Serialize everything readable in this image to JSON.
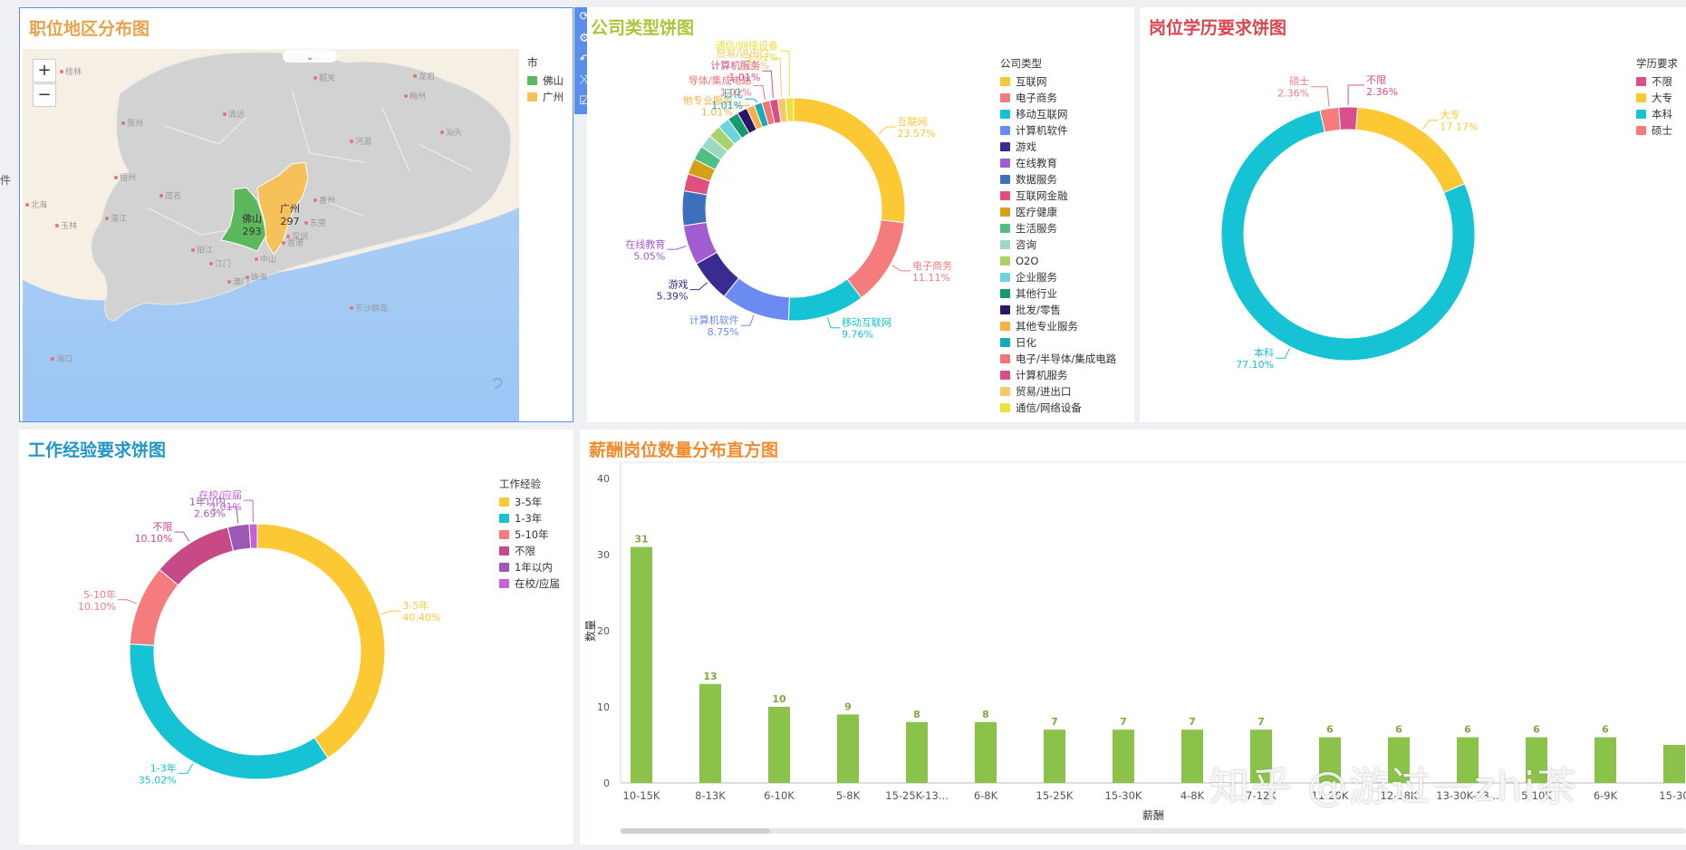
{
  "left_edge_text": "件",
  "map": {
    "title": "职位地区分布图",
    "zoom_in": "+",
    "zoom_out": "−",
    "legend_title": "市",
    "regions": [
      {
        "name": "佛山",
        "value": "293",
        "color": "#5cb85c"
      },
      {
        "name": "广州",
        "value": "297",
        "color": "#f7c15a"
      }
    ],
    "place_labels": [
      "桂林",
      "贺州",
      "梧州",
      "玉林",
      "北海",
      "香港",
      "东沙群岛",
      "海口",
      "茂名",
      "湛江",
      "阳江",
      "江门",
      "清远",
      "韶关",
      "河源",
      "梅州",
      "汕头",
      "惠州",
      "深圳",
      "龙岩",
      "东莞",
      "中山",
      "珠海",
      "澳门"
    ],
    "toolbar_icons": [
      "lasso-icon",
      "settings-icon",
      "undo-icon",
      "shuffle-icon",
      "checkbox-icon"
    ]
  },
  "company": {
    "title": "公司类型饼图",
    "legend_title": "公司类型",
    "chart_data": {
      "type": "pie",
      "title": "公司类型饼图",
      "legend_title": "公司类型",
      "slices": [
        {
          "name": "互联网",
          "percent": 23.57,
          "label": "23.57%",
          "color": "#fcc934"
        },
        {
          "name": "电子商务",
          "percent": 11.11,
          "label": "11.11%",
          "color": "#f47c7c"
        },
        {
          "name": "移动互联网",
          "percent": 9.76,
          "label": "9.76%",
          "color": "#16c3d4"
        },
        {
          "name": "计算机软件",
          "percent": 8.75,
          "label": "8.75%",
          "color": "#6b8bf0"
        },
        {
          "name": "游戏",
          "percent": 5.39,
          "label": "5.39%",
          "color": "#3b2a8f"
        },
        {
          "name": "在线教育",
          "percent": 5.05,
          "label": "5.05%",
          "color": "#a15cd1"
        },
        {
          "name": "数据服务",
          "percent": 4.4,
          "label": "",
          "color": "#3d6fba"
        },
        {
          "name": "互联网金融",
          "percent": 2.2,
          "label": "",
          "color": "#e0507c"
        },
        {
          "name": "医疗健康",
          "percent": 2.0,
          "label": "",
          "color": "#d4a017"
        },
        {
          "name": "生活服务",
          "percent": 1.8,
          "label": "",
          "color": "#4fbf86"
        },
        {
          "name": "咨询",
          "percent": 1.7,
          "label": "",
          "color": "#9ed8c4"
        },
        {
          "name": "O2O",
          "percent": 1.6,
          "label": "",
          "color": "#a7d36a"
        },
        {
          "name": "企业服务",
          "percent": 1.5,
          "label": "",
          "color": "#6fd3df"
        },
        {
          "name": "其他行业",
          "percent": 1.4,
          "label": "",
          "color": "#159a6e"
        },
        {
          "name": "批发/零售",
          "percent": 1.3,
          "label": "",
          "color": "#2c1668"
        },
        {
          "name": "其他专业服务",
          "percent": 1.01,
          "label": "1.01%",
          "color": "#f7b043"
        },
        {
          "name": "日化",
          "percent": 1.01,
          "label": "1.01%",
          "color": "#17aab8"
        },
        {
          "name": "电子/半导体/集成电路",
          "percent": 1.01,
          "label": "1.01%",
          "color": "#f27474"
        },
        {
          "name": "计算机服务",
          "percent": 1.01,
          "label": "1.01%",
          "color": "#d84d8a"
        },
        {
          "name": "贸易/进出口",
          "percent": 1.01,
          "label": "1.01%",
          "color": "#f5c96b"
        },
        {
          "name": "通信/网络设备",
          "percent": 1.01,
          "label": "1.01%",
          "color": "#f2e03a"
        }
      ]
    },
    "outer_labels": [
      {
        "name": "互联网",
        "pct": "23.57%"
      },
      {
        "name": "电子商务",
        "pct": "11.11%"
      },
      {
        "name": "移动互联网",
        "pct": "9.76%"
      },
      {
        "name": "计算机软件",
        "pct": "8.75%"
      },
      {
        "name": "游戏",
        "pct": "5.39%"
      },
      {
        "name": "在线教育",
        "pct": "5.05%"
      },
      {
        "name": "他专业服务",
        "pct": "1.01%"
      },
      {
        "name": "日化",
        "pct": "1.01%"
      },
      {
        "name": "导体/集成电路",
        "pct": "1.01%"
      },
      {
        "name": "计算机服务",
        "pct": "1.01%"
      },
      {
        "name": "贸易/进出口",
        "pct": "1.01%"
      },
      {
        "name": "通信/网络设备",
        "pct": "1.01%"
      }
    ]
  },
  "education": {
    "title": "岗位学历要求饼图",
    "legend_title": "学历要求",
    "chart_data": {
      "type": "pie",
      "title": "岗位学历要求饼图",
      "legend_title": "学历要求",
      "slices": [
        {
          "name": "不限",
          "percent": 2.36,
          "label": "2.36%",
          "color": "#d94e8c"
        },
        {
          "name": "大专",
          "percent": 17.17,
          "label": "17.17%",
          "color": "#fcc934"
        },
        {
          "name": "本科",
          "percent": 77.1,
          "label": "77.10%",
          "color": "#16c3d4"
        },
        {
          "name": "硕士",
          "percent": 2.36,
          "label": "2.36%",
          "color": "#f47c7c"
        }
      ]
    }
  },
  "experience": {
    "title": "工作经验要求饼图",
    "legend_title": "工作经验",
    "chart_data": {
      "type": "pie",
      "title": "工作经验要求饼图",
      "legend_title": "工作经验",
      "slices": [
        {
          "name": "3-5年",
          "percent": 40.4,
          "label": "40.40%",
          "color": "#fcc934"
        },
        {
          "name": "1-3年",
          "percent": 35.02,
          "label": "35.02%",
          "color": "#16c3d4"
        },
        {
          "name": "5-10年",
          "percent": 10.1,
          "label": "10.10%",
          "color": "#f47c7c"
        },
        {
          "name": "不限",
          "percent": 10.1,
          "label": "10.10%",
          "color": "#c74a86"
        },
        {
          "name": "1年以内",
          "percent": 2.69,
          "label": "2.69%",
          "color": "#9b59b6"
        },
        {
          "name": "在校/应届",
          "percent": 1.01,
          "label": "1.01%",
          "color": "#c95fdb"
        }
      ]
    }
  },
  "salary": {
    "title": "薪酬岗位数量分布直方图",
    "chart_data": {
      "type": "bar",
      "title": "薪酬岗位数量分布直方图",
      "xlabel": "薪酬",
      "ylabel": "数量",
      "ylim": [
        0,
        40
      ],
      "yticks": [
        0,
        10,
        20,
        30,
        40
      ],
      "categories": [
        "10-15K",
        "8-13K",
        "6-10K",
        "5-8K",
        "15-25K-13...",
        "6-8K",
        "15-25K",
        "15-30K",
        "4-8K",
        "7-12K",
        "11-20K",
        "12-18K",
        "13-30K-13...",
        "5-10K",
        "6-9K",
        "15-30"
      ],
      "values": [
        31,
        13,
        10,
        9,
        8,
        8,
        7,
        7,
        7,
        7,
        6,
        6,
        6,
        6,
        6,
        5
      ],
      "value_labels": [
        "31",
        "13",
        "10",
        "9",
        "8",
        "8",
        "7",
        "7",
        "7",
        "7",
        "6",
        "6",
        "6",
        "6",
        "6",
        ""
      ],
      "color": "#8bc34a"
    }
  },
  "watermark": "知乎 @游过一zhi茶"
}
